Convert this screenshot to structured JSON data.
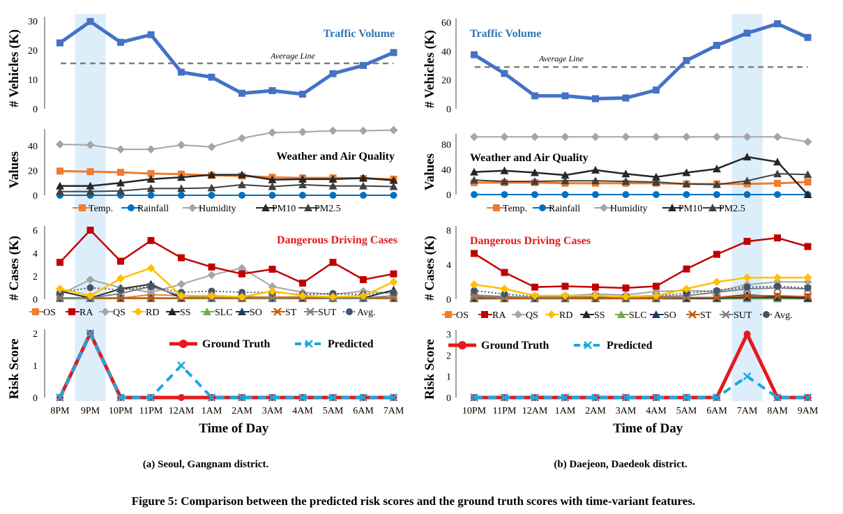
{
  "figure": {
    "caption": "Figure 5: Comparison between the predicted risk scores and the ground truth scores with time-variant features."
  },
  "colors": {
    "traffic": "#4472C4",
    "highlight": "#DDEEFB",
    "temp": "#ED7D31",
    "rainfall": "#0070C0",
    "humidity": "#A5A5A5",
    "pm10": "#262626",
    "pm25": "#404040",
    "OS": "#ED7D31",
    "RA": "#C00000",
    "QS": "#A5A5A5",
    "RD": "#FFC000",
    "SS": "#262626",
    "SLC": "#70AD47",
    "SO": "#1F3864",
    "ST": "#C55A11",
    "SUT": "#7F7F7F",
    "Avg": "#44546A",
    "ground_truth": "#E31A1C",
    "predicted": "#1CA7DE",
    "traffic_title": "#2E75B6",
    "cases_title": "#E31A1C"
  },
  "chart_data": [
    {
      "id": "seoul",
      "type": "line",
      "subcaption": "(a) Seoul, Gangnam district.",
      "xlabel": "Time of Day",
      "categories": [
        "8PM",
        "9PM",
        "10PM",
        "11PM",
        "12AM",
        "1AM",
        "2AM",
        "3AM",
        "4AM",
        "5AM",
        "6AM",
        "7AM"
      ],
      "highlight_index": 1,
      "traffic": {
        "title": "Traffic Volume",
        "ylabel": "# Vehicles (K)",
        "ylim": [
          0,
          30
        ],
        "yticks": [
          0,
          10,
          20,
          30
        ],
        "average_label": "Average Line",
        "average": 15.5,
        "values": [
          22.5,
          29.8,
          22.7,
          25.3,
          12.5,
          10.8,
          5.3,
          6.2,
          5.0,
          12.0,
          14.8,
          19.2
        ]
      },
      "weather": {
        "title": "Weather and Air Quality",
        "ylabel": "Values",
        "ylim": [
          0,
          50
        ],
        "yticks": [
          0,
          20,
          40
        ],
        "legend": [
          "Temp.",
          "Rainfall",
          "Humidity",
          "PM10",
          "PM2.5"
        ],
        "series": [
          {
            "name": "Temp.",
            "values": [
              19.5,
              19.0,
              18.5,
              17.5,
              17.0,
              16.0,
              15.5,
              14.5,
              14.0,
              14.0,
              13.5,
              13.0
            ]
          },
          {
            "name": "Rainfall",
            "values": [
              0,
              0,
              0,
              0,
              0,
              0,
              0,
              0,
              0,
              0,
              0,
              0
            ]
          },
          {
            "name": "Humidity",
            "values": [
              41,
              40.5,
              37,
              37,
              40.5,
              39,
              46,
              50.5,
              51,
              52,
              52,
              52.5
            ]
          },
          {
            "name": "PM10",
            "values": [
              7.5,
              7.5,
              10,
              13,
              14.5,
              16.5,
              16.5,
              12.5,
              13,
              13,
              14,
              12
            ]
          },
          {
            "name": "PM2.5",
            "values": [
              3,
              3,
              3.5,
              5.5,
              5.5,
              6,
              8.5,
              7,
              8.5,
              7.5,
              7.5,
              7
            ]
          }
        ]
      },
      "cases": {
        "title": "Dangerous Driving Cases",
        "ylabel": "# Cases (K)",
        "ylim": [
          0,
          6
        ],
        "yticks": [
          0,
          2,
          4,
          6
        ],
        "legend": [
          "OS",
          "RA",
          "QS",
          "RD",
          "SS",
          "SLC",
          "SO",
          "ST",
          "SUT",
          "Avg."
        ],
        "series": [
          {
            "name": "OS",
            "values": [
              0.1,
              0.1,
              0.1,
              0.4,
              0.3,
              0.2,
              0.2,
              0.2,
              0.2,
              0.1,
              0.1,
              0.1
            ]
          },
          {
            "name": "RA",
            "values": [
              3.2,
              6.0,
              3.3,
              5.1,
              3.6,
              2.8,
              2.2,
              2.6,
              1.4,
              3.2,
              1.7,
              2.2
            ]
          },
          {
            "name": "QS",
            "values": [
              0.4,
              1.7,
              1.0,
              0.6,
              1.3,
              2.1,
              2.7,
              1.1,
              0.6,
              0.4,
              0.7,
              0.5
            ]
          },
          {
            "name": "RD",
            "values": [
              0.9,
              0.3,
              1.8,
              2.7,
              0.3,
              0.3,
              0.2,
              0.7,
              0.3,
              0.2,
              0.3,
              1.5
            ]
          },
          {
            "name": "SS",
            "values": [
              0.7,
              0.1,
              0.9,
              1.3,
              0.1,
              0.1,
              0.1,
              0.1,
              0.1,
              0.1,
              0.1,
              0.8
            ]
          },
          {
            "name": "SLC",
            "values": [
              0.05,
              0.05,
              0.05,
              0.05,
              0.05,
              0.05,
              0.05,
              0.05,
              0.05,
              0.05,
              0.05,
              0.05
            ]
          },
          {
            "name": "SO",
            "values": [
              0.1,
              0.1,
              0.1,
              0.1,
              0.1,
              0.1,
              0.1,
              0.1,
              0.1,
              0.1,
              0.1,
              0.1
            ]
          },
          {
            "name": "ST",
            "values": [
              0.1,
              0.1,
              0.1,
              0.1,
              0.1,
              0.1,
              0.1,
              0.1,
              0.1,
              0.1,
              0.1,
              0.1
            ]
          },
          {
            "name": "SUT",
            "values": [
              0.1,
              0.1,
              0.5,
              1.1,
              0.3,
              0.1,
              0.2,
              0.1,
              0.2,
              0.1,
              0.1,
              0.3
            ]
          },
          {
            "name": "Avg.",
            "values": [
              0.6,
              1.0,
              0.8,
              1.1,
              0.6,
              0.7,
              0.6,
              0.6,
              0.4,
              0.5,
              0.4,
              0.6
            ]
          }
        ]
      },
      "risk": {
        "ylabel": "Risk Score",
        "ylim": [
          0,
          2
        ],
        "yticks": [
          0,
          1,
          2
        ],
        "legend": [
          "Ground Truth",
          "Predicted"
        ],
        "series": [
          {
            "name": "Ground Truth",
            "values": [
              0,
              2,
              0,
              0,
              0,
              0,
              0,
              0,
              0,
              0,
              0,
              0
            ]
          },
          {
            "name": "Predicted",
            "values": [
              0,
              2,
              0,
              0,
              1,
              0,
              0,
              0,
              0,
              0,
              0,
              0
            ]
          }
        ]
      }
    },
    {
      "id": "daejeon",
      "type": "line",
      "subcaption": "(b) Daejeon, Daedeok district.",
      "xlabel": "Time of Day",
      "categories": [
        "10PM",
        "11PM",
        "12AM",
        "1AM",
        "2AM",
        "3AM",
        "4AM",
        "5AM",
        "6AM",
        "7AM",
        "8AM",
        "9AM"
      ],
      "highlight_index": 9,
      "traffic": {
        "title": "Traffic Volume",
        "ylabel": "# Vehicles (K)",
        "ylim": [
          0,
          60
        ],
        "yticks": [
          0,
          20,
          40,
          60
        ],
        "average_label": "Average Line",
        "average": 29,
        "values": [
          37.5,
          24.5,
          9,
          9,
          7,
          7.5,
          13,
          33.5,
          44,
          52.5,
          59,
          49.5
        ]
      },
      "weather": {
        "title": "Weather and Air Quality",
        "ylabel": "Values",
        "ylim": [
          0,
          90
        ],
        "yticks": [
          0,
          40,
          80
        ],
        "legend": [
          "Temp.",
          "Rainfall",
          "Humidity",
          "PM10",
          "PM2.5"
        ],
        "series": [
          {
            "name": "Temp.",
            "values": [
              19,
              19,
              19,
              18,
              18,
              18,
              18,
              17,
              17,
              17,
              18,
              20
            ]
          },
          {
            "name": "Rainfall",
            "values": [
              0,
              0,
              0,
              0,
              0,
              0,
              0,
              0,
              0,
              0,
              0,
              0
            ]
          },
          {
            "name": "Humidity",
            "values": [
              92,
              92,
              92,
              92,
              92,
              92,
              92,
              92,
              92,
              92,
              92,
              84
            ]
          },
          {
            "name": "PM10",
            "values": [
              36,
              38,
              35,
              31,
              39,
              33,
              28,
              35,
              41,
              60,
              52,
              0
            ]
          },
          {
            "name": "PM2.5",
            "values": [
              23,
              21,
              21,
              22,
              22,
              21,
              20,
              17,
              16,
              22,
              33,
              32
            ]
          }
        ]
      },
      "cases": {
        "title": "Dangerous Driving Cases",
        "ylabel": "# Cases (K)",
        "ylim": [
          0,
          8
        ],
        "yticks": [
          0,
          4,
          8
        ],
        "legend": [
          "OS",
          "RA",
          "QS",
          "RD",
          "SS",
          "SLC",
          "SO",
          "ST",
          "SUT",
          "Avg."
        ],
        "series": [
          {
            "name": "OS",
            "values": [
              0.3,
              0.2,
              0.2,
              0.2,
              0.2,
              0.2,
              0.2,
              0.2,
              0.2,
              0.3,
              0.3,
              0.3
            ]
          },
          {
            "name": "RA",
            "values": [
              5.3,
              3.1,
              1.4,
              1.5,
              1.4,
              1.3,
              1.5,
              3.5,
              5.2,
              6.7,
              7.1,
              6.1
            ]
          },
          {
            "name": "QS",
            "values": [
              0.5,
              0.3,
              0.2,
              0.4,
              0.6,
              0.5,
              0.9,
              1.0,
              0.9,
              1.7,
              2.0,
              2.0
            ]
          },
          {
            "name": "RD",
            "values": [
              1.7,
              1.2,
              0.4,
              0.4,
              0.4,
              0.3,
              0.4,
              1.2,
              2.0,
              2.5,
              2.5,
              2.5
            ]
          },
          {
            "name": "SS",
            "values": [
              0.2,
              0.1,
              0.1,
              0.1,
              0.1,
              0.1,
              0.1,
              0.1,
              0.2,
              0.5,
              0.3,
              0.2
            ]
          },
          {
            "name": "SLC",
            "values": [
              0.05,
              0.05,
              0.05,
              0.05,
              0.05,
              0.05,
              0.05,
              0.05,
              0.05,
              0.05,
              0.05,
              0.05
            ]
          },
          {
            "name": "SO",
            "values": [
              0.1,
              0.1,
              0.1,
              0.1,
              0.1,
              0.1,
              0.1,
              0.1,
              0.1,
              0.2,
              0.2,
              0.1
            ]
          },
          {
            "name": "ST",
            "values": [
              0.2,
              0.1,
              0.1,
              0.1,
              0.1,
              0.1,
              0.1,
              0.2,
              0.2,
              0.4,
              0.4,
              0.3
            ]
          },
          {
            "name": "SUT",
            "values": [
              0.4,
              0.3,
              0.2,
              0.2,
              0.3,
              0.2,
              0.3,
              0.4,
              0.8,
              1.2,
              1.3,
              1.2
            ]
          },
          {
            "name": "Avg.",
            "values": [
              1.0,
              0.6,
              0.3,
              0.3,
              0.3,
              0.3,
              0.4,
              0.7,
              1.0,
              1.4,
              1.5,
              1.3
            ]
          }
        ]
      },
      "risk": {
        "ylabel": "Risk Score",
        "ylim": [
          0,
          3
        ],
        "yticks": [
          0,
          1,
          2,
          3
        ],
        "legend": [
          "Ground Truth",
          "Predicted"
        ],
        "series": [
          {
            "name": "Ground Truth",
            "values": [
              0,
              0,
              0,
              0,
              0,
              0,
              0,
              0,
              0,
              3,
              0,
              0
            ]
          },
          {
            "name": "Predicted",
            "values": [
              0,
              0,
              0,
              0,
              0,
              0,
              0,
              0,
              0,
              1,
              0,
              0
            ]
          }
        ]
      }
    }
  ]
}
